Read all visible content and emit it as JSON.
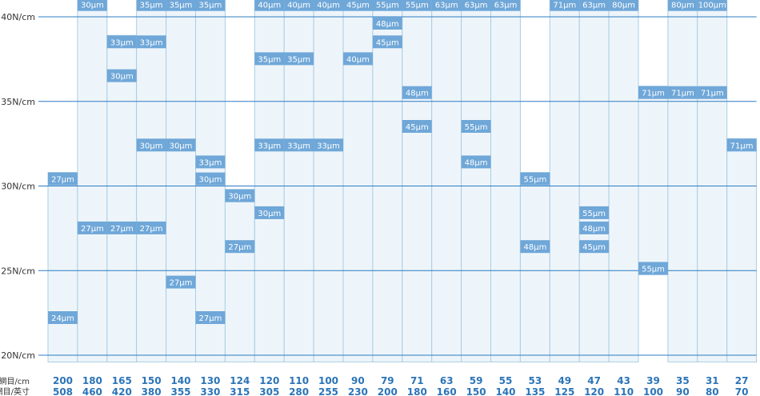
{
  "chart_data": {
    "type": "bar",
    "y_axis": {
      "unit_label": "N/cm",
      "ticks": [
        {
          "value": 20,
          "label": "20N/cm"
        },
        {
          "value": 25,
          "label": "25N/cm"
        },
        {
          "value": 30,
          "label": "30N/cm"
        },
        {
          "value": 35,
          "label": "35N/cm"
        },
        {
          "value": 40,
          "label": "40N/cm"
        }
      ],
      "ylim": [
        19.6,
        41.1
      ]
    },
    "x_axis": {
      "row_labels": [
        "網目/cm",
        "網目/英寸"
      ],
      "categories": [
        {
          "mesh_cm": "200",
          "mesh_inch": "508"
        },
        {
          "mesh_cm": "180",
          "mesh_inch": "460"
        },
        {
          "mesh_cm": "165",
          "mesh_inch": "420"
        },
        {
          "mesh_cm": "150",
          "mesh_inch": "380"
        },
        {
          "mesh_cm": "140",
          "mesh_inch": "355"
        },
        {
          "mesh_cm": "130",
          "mesh_inch": "330"
        },
        {
          "mesh_cm": "124",
          "mesh_inch": "315"
        },
        {
          "mesh_cm": "120",
          "mesh_inch": "305"
        },
        {
          "mesh_cm": "110",
          "mesh_inch": "280"
        },
        {
          "mesh_cm": "100",
          "mesh_inch": "255"
        },
        {
          "mesh_cm": "90",
          "mesh_inch": "230"
        },
        {
          "mesh_cm": "79",
          "mesh_inch": "200"
        },
        {
          "mesh_cm": "71",
          "mesh_inch": "180"
        },
        {
          "mesh_cm": "63",
          "mesh_inch": "160"
        },
        {
          "mesh_cm": "59",
          "mesh_inch": "150"
        },
        {
          "mesh_cm": "55",
          "mesh_inch": "140"
        },
        {
          "mesh_cm": "53",
          "mesh_inch": "135"
        },
        {
          "mesh_cm": "49",
          "mesh_inch": "125"
        },
        {
          "mesh_cm": "47",
          "mesh_inch": "120"
        },
        {
          "mesh_cm": "43",
          "mesh_inch": "110"
        },
        {
          "mesh_cm": "39",
          "mesh_inch": "100"
        },
        {
          "mesh_cm": "35",
          "mesh_inch": "90"
        },
        {
          "mesh_cm": "31",
          "mesh_inch": "80"
        },
        {
          "mesh_cm": "27",
          "mesh_inch": "70"
        }
      ]
    },
    "columns": [
      {
        "range": [
          19.6,
          30.8
        ],
        "tags": [
          {
            "label": "27μm",
            "value": 30.8
          },
          {
            "label": "24μm",
            "value": 22.6
          }
        ]
      },
      {
        "range": [
          19.6,
          41.1
        ],
        "tags": [
          {
            "label": "30μm",
            "value": 41.1
          },
          {
            "label": "27μm",
            "value": 27.9
          }
        ]
      },
      {
        "range": [
          19.6,
          38.9
        ],
        "tags": [
          {
            "label": "33μm",
            "value": 38.9
          },
          {
            "label": "30μm",
            "value": 36.9
          },
          {
            "label": "27μm",
            "value": 27.9
          }
        ]
      },
      {
        "range": [
          19.6,
          41.1
        ],
        "tags": [
          {
            "label": "35μm",
            "value": 41.1
          },
          {
            "label": "33μm",
            "value": 38.9
          },
          {
            "label": "30μm",
            "value": 32.8
          },
          {
            "label": "27μm",
            "value": 27.9
          }
        ]
      },
      {
        "range": [
          19.6,
          41.1
        ],
        "tags": [
          {
            "label": "35μm",
            "value": 41.1
          },
          {
            "label": "30μm",
            "value": 32.8
          },
          {
            "label": "27μm",
            "value": 24.7
          }
        ]
      },
      {
        "range": [
          19.6,
          41.1
        ],
        "tags": [
          {
            "label": "35μm",
            "value": 41.1
          },
          {
            "label": "33μm",
            "value": 31.8
          },
          {
            "label": "30μm",
            "value": 30.8
          },
          {
            "label": "27μm",
            "value": 22.6
          }
        ]
      },
      {
        "range": [
          19.6,
          29.8
        ],
        "tags": [
          {
            "label": "30μm",
            "value": 29.8
          },
          {
            "label": "27μm",
            "value": 26.8
          }
        ]
      },
      {
        "range": [
          19.6,
          41.1
        ],
        "tags": [
          {
            "label": "40μm",
            "value": 41.1
          },
          {
            "label": "35μm",
            "value": 37.9
          },
          {
            "label": "33μm",
            "value": 32.8
          },
          {
            "label": "30μm",
            "value": 28.8
          }
        ]
      },
      {
        "range": [
          19.6,
          41.1
        ],
        "tags": [
          {
            "label": "40μm",
            "value": 41.1
          },
          {
            "label": "35μm",
            "value": 37.9
          },
          {
            "label": "33μm",
            "value": 32.8
          }
        ]
      },
      {
        "range": [
          19.6,
          41.1
        ],
        "tags": [
          {
            "label": "40μm",
            "value": 41.1
          },
          {
            "label": "33μm",
            "value": 32.8
          }
        ]
      },
      {
        "range": [
          19.6,
          41.1
        ],
        "tags": [
          {
            "label": "45μm",
            "value": 41.1
          },
          {
            "label": "40μm",
            "value": 37.9
          }
        ]
      },
      {
        "range": [
          19.6,
          41.1
        ],
        "tags": [
          {
            "label": "55μm",
            "value": 41.1
          },
          {
            "label": "48μm",
            "value": 40.0
          },
          {
            "label": "45μm",
            "value": 38.9
          }
        ]
      },
      {
        "range": [
          19.6,
          41.1
        ],
        "tags": [
          {
            "label": "55μm",
            "value": 41.1
          },
          {
            "label": "48μm",
            "value": 35.9
          },
          {
            "label": "45μm",
            "value": 33.9
          }
        ]
      },
      {
        "range": [
          19.6,
          41.1
        ],
        "tags": [
          {
            "label": "63μm",
            "value": 41.1
          }
        ]
      },
      {
        "range": [
          19.6,
          41.1
        ],
        "tags": [
          {
            "label": "63μm",
            "value": 41.1
          },
          {
            "label": "55μm",
            "value": 33.9
          },
          {
            "label": "48μm",
            "value": 31.8
          }
        ]
      },
      {
        "range": [
          19.6,
          41.1
        ],
        "tags": [
          {
            "label": "63μm",
            "value": 41.1
          }
        ]
      },
      {
        "range": [
          19.6,
          30.8
        ],
        "tags": [
          {
            "label": "55μm",
            "value": 30.8
          },
          {
            "label": "48μm",
            "value": 26.8
          }
        ]
      },
      {
        "range": [
          19.6,
          41.1
        ],
        "tags": [
          {
            "label": "71μm",
            "value": 41.1
          }
        ]
      },
      {
        "range": [
          19.6,
          41.1
        ],
        "tags": [
          {
            "label": "63μm",
            "value": 41.1
          },
          {
            "label": "55μm",
            "value": 28.8
          },
          {
            "label": "48μm",
            "value": 27.9
          },
          {
            "label": "45μm",
            "value": 26.8
          }
        ]
      },
      {
        "range": [
          19.6,
          41.1
        ],
        "tags": [
          {
            "label": "80μm",
            "value": 41.1
          }
        ]
      },
      {
        "range": [
          25.5,
          35.9
        ],
        "tags": [
          {
            "label": "71μm",
            "value": 35.9
          },
          {
            "label": "55μm",
            "value": 25.5
          }
        ]
      },
      {
        "range": [
          19.6,
          41.1
        ],
        "tags": [
          {
            "label": "80μm",
            "value": 41.1
          },
          {
            "label": "71μm",
            "value": 35.9
          }
        ]
      },
      {
        "range": [
          19.6,
          41.1
        ],
        "tags": [
          {
            "label": "100μm",
            "value": 41.1
          },
          {
            "label": "71μm",
            "value": 35.9
          }
        ]
      },
      {
        "range": [
          19.6,
          32.8
        ],
        "tags": [
          {
            "label": "71μm",
            "value": 32.8
          }
        ]
      }
    ],
    "colors": {
      "column_fill": "#eef5fa",
      "column_border": "#a9cde6",
      "tag_fill": "#6fa7d8",
      "gridline": "#2b7cc4",
      "x_label": "#2b74b8"
    },
    "grid": true
  }
}
